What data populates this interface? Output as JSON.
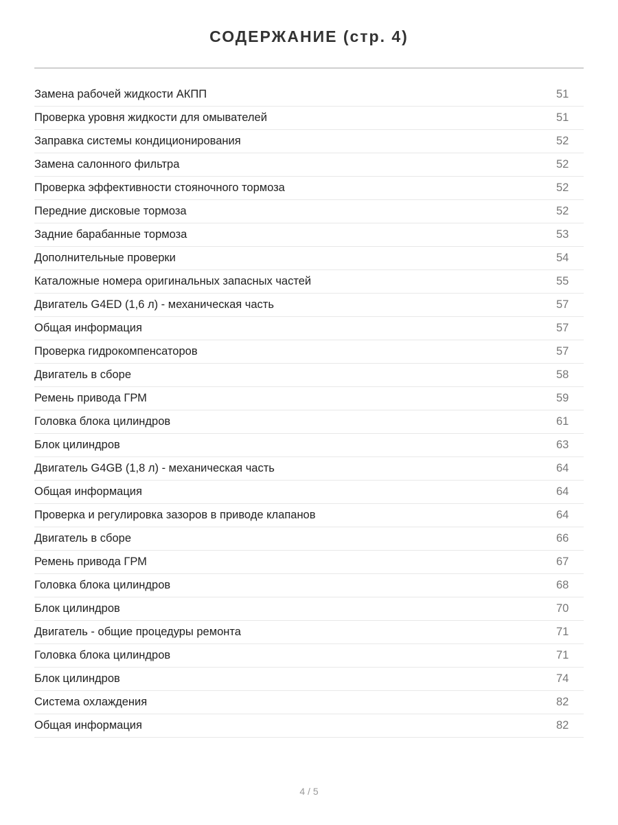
{
  "title": "СОДЕРЖАНИЕ (стр. 4)",
  "entries": [
    {
      "title": "Замена рабочей жидкости АКПП",
      "page": "51"
    },
    {
      "title": "Проверка уровня жидкости для омывателей",
      "page": "51"
    },
    {
      "title": "Заправка системы кондиционирования",
      "page": "52"
    },
    {
      "title": "Замена салонного фильтра",
      "page": "52"
    },
    {
      "title": "Проверка эффективности стояночного тормоза",
      "page": "52"
    },
    {
      "title": "Передние дисковые тормоза",
      "page": "52"
    },
    {
      "title": "Задние барабанные тормоза",
      "page": "53"
    },
    {
      "title": "Дополнительные проверки",
      "page": "54"
    },
    {
      "title": "Каталожные номера оригинальных запасных частей",
      "page": "55"
    },
    {
      "title": "Двигатель G4ED (1,6 л) - механическая часть",
      "page": "57"
    },
    {
      "title": "Общая информация",
      "page": "57"
    },
    {
      "title": "Проверка гидрокомпенсаторов",
      "page": "57"
    },
    {
      "title": "Двигатель в сборе",
      "page": "58"
    },
    {
      "title": "Ремень привода ГРМ",
      "page": "59"
    },
    {
      "title": "Головка блока цилиндров",
      "page": "61"
    },
    {
      "title": "Блок цилиндров",
      "page": "63"
    },
    {
      "title": "Двигатель G4GB (1,8 л) - механическая часть",
      "page": "64"
    },
    {
      "title": "Общая информация",
      "page": "64"
    },
    {
      "title": "Проверка и регулировка зазоров в приводе клапанов",
      "page": "64"
    },
    {
      "title": "Двигатель в сборе",
      "page": "66"
    },
    {
      "title": "Ремень привода ГРМ",
      "page": "67"
    },
    {
      "title": "Головка блока цилиндров",
      "page": "68"
    },
    {
      "title": "Блок цилиндров",
      "page": "70"
    },
    {
      "title": "Двигатель - общие процедуры ремонта",
      "page": "71"
    },
    {
      "title": "Головка блока цилиндров",
      "page": "71"
    },
    {
      "title": "Блок цилиндров",
      "page": "74"
    },
    {
      "title": "Система охлаждения",
      "page": "82"
    },
    {
      "title": "Общая информация",
      "page": "82"
    }
  ],
  "footer": "4 / 5"
}
